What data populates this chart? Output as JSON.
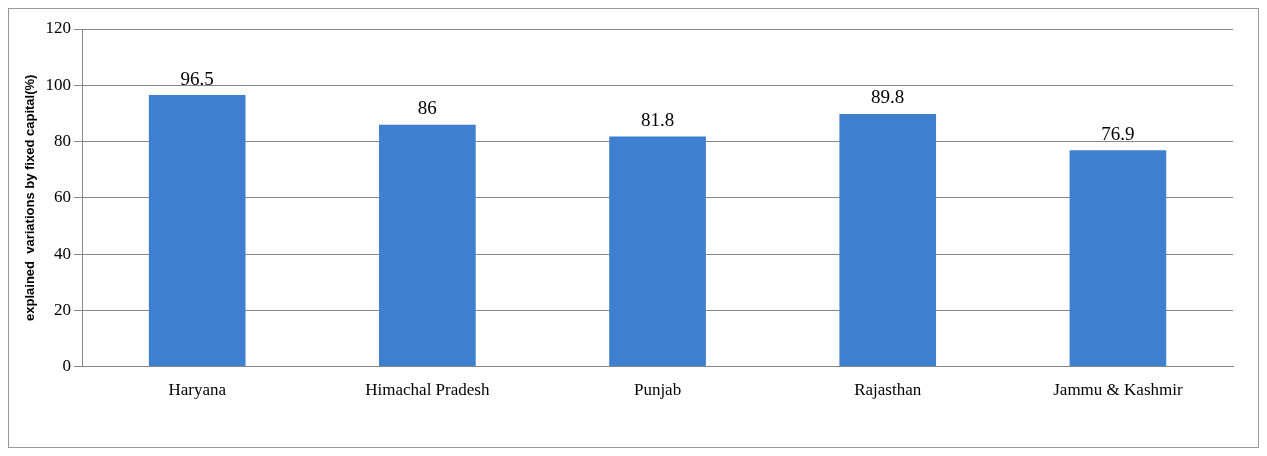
{
  "chart_data": {
    "type": "bar",
    "ylabel": "explained  variations by fixed capital(%)",
    "categories": [
      "Haryana",
      "Himachal Pradesh",
      "Punjab",
      "Rajasthan",
      "Jammu & Kashmir"
    ],
    "values": [
      96.5,
      86,
      81.8,
      89.8,
      76.9
    ],
    "color": "#3f7fd0",
    "ylim": [
      0,
      120
    ],
    "yticks": [
      0,
      20,
      40,
      60,
      80,
      100,
      120
    ],
    "grid": "y",
    "data_labels": true
  }
}
